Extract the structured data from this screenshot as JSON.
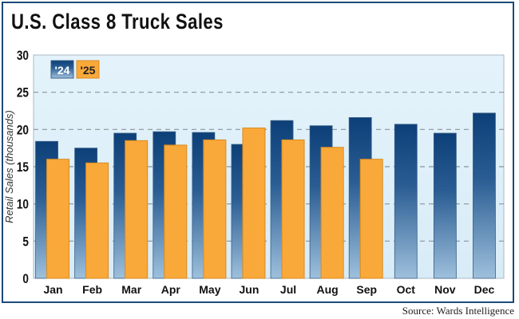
{
  "chart_data": {
    "type": "bar",
    "title": "U.S. Class 8 Truck Sales",
    "ylabel": "Retail Sales (thousands)",
    "xlabel": "",
    "ylim": [
      0,
      30
    ],
    "yticks": [
      0,
      5,
      10,
      15,
      20,
      25,
      30
    ],
    "grid": true,
    "legend_placement": "top-left",
    "categories": [
      "Jan",
      "Feb",
      "Mar",
      "Apr",
      "May",
      "Jun",
      "Jul",
      "Aug",
      "Sep",
      "Oct",
      "Nov",
      "Dec"
    ],
    "series": [
      {
        "name": "'24",
        "color": "#0d3f78",
        "values": [
          18.4,
          17.5,
          19.5,
          19.7,
          19.6,
          18.0,
          21.2,
          20.5,
          21.6,
          20.7,
          19.5,
          22.2
        ]
      },
      {
        "name": "'25",
        "color": "#f9a83a",
        "values": [
          16.0,
          15.5,
          18.5,
          17.9,
          18.6,
          20.2,
          18.6,
          17.6,
          16.0,
          null,
          null,
          null
        ]
      }
    ],
    "source": "Source: Wards Intelligence"
  }
}
